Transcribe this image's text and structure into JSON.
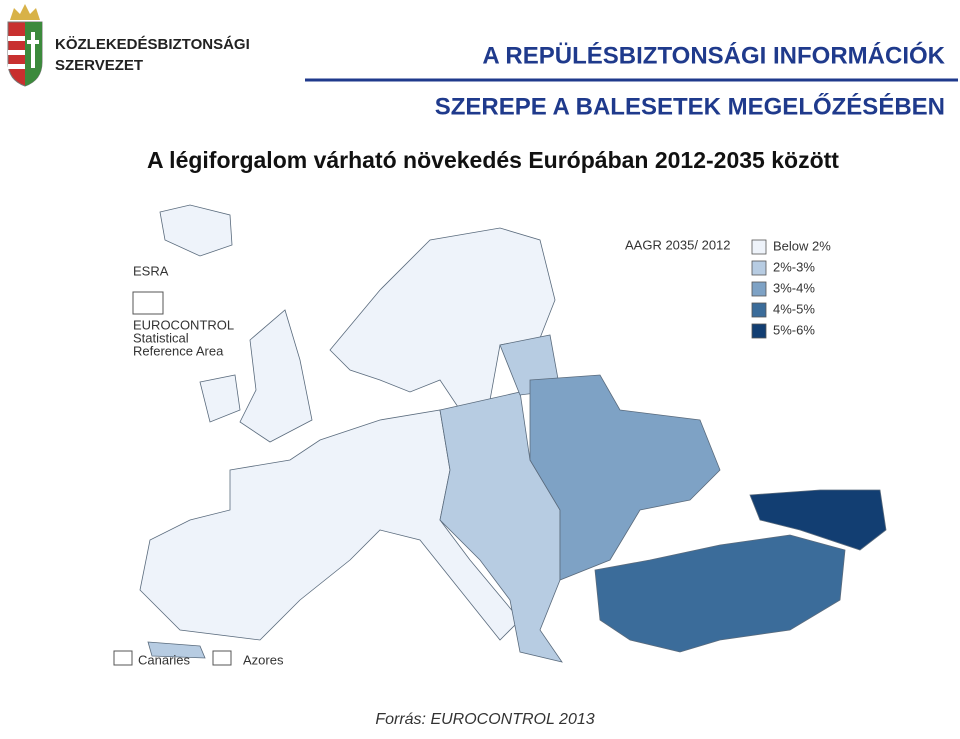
{
  "header": {
    "org_name": [
      "KÖZLEKEDÉSBIZTONSÁGI",
      "SZERVEZET"
    ],
    "title": [
      "A REPÜLÉSBIZTONSÁGI INFORMÁCIÓK",
      "SZEREPE A BALESETEK MEGELŐZÉSÉBEN"
    ]
  },
  "subtitle": "A légiforgalom várható növekedés Európában 2012-2035 között",
  "map": {
    "labels": {
      "esra": "ESRA",
      "reference_area": [
        "EUROCONTROL",
        "Statistical",
        "Reference Area"
      ],
      "canaries": "Canaries",
      "azores": "Azores"
    },
    "legend": {
      "title": "AAGR 2035/ 2012",
      "items": [
        {
          "label": "Below 2%",
          "color": "#eef3fa"
        },
        {
          "label": "2%-3%",
          "color": "#b7cce2"
        },
        {
          "label": "3%-4%",
          "color": "#7ea2c5"
        },
        {
          "label": "4%-5%",
          "color": "#3b6c9a"
        },
        {
          "label": "5%-6%",
          "color": "#123e72"
        }
      ]
    }
  },
  "source": "Forrás: EUROCONTROL 2013"
}
